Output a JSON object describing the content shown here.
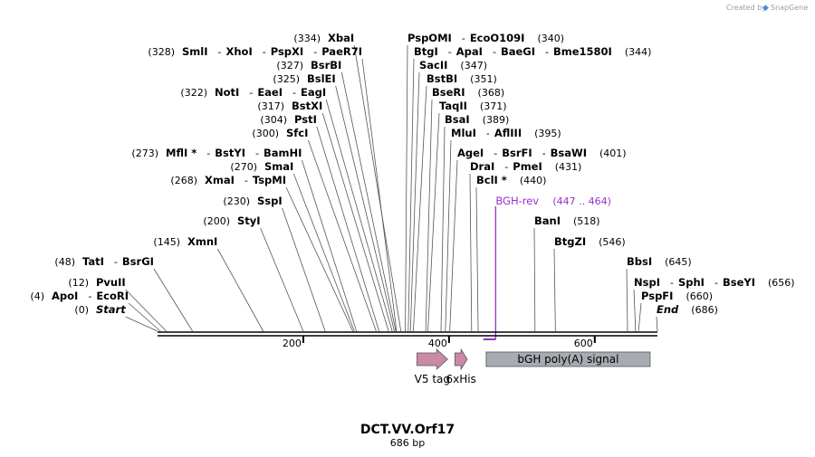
{
  "credit": {
    "created_by": "Created by",
    "brand": "SnapGene"
  },
  "map": {
    "title": "DCT.VV.Orf17",
    "length_label": "686 bp",
    "length": 686,
    "ticks": [
      {
        "pos": 200,
        "label": "200"
      },
      {
        "pos": 400,
        "label": "400"
      },
      {
        "pos": 600,
        "label": "600"
      }
    ]
  },
  "sites": [
    {
      "names": [
        "XbaI",
        "PspOMI",
        "EcoO109I"
      ],
      "pos": [
        334,
        null,
        340
      ],
      "cuts": [
        334,
        340,
        340
      ]
    },
    {
      "names": [
        "SmlI",
        "XhoI",
        "PspXI",
        "PaeR7I",
        "BtgI",
        "ApaI",
        "BaeGI",
        "Bme1580I"
      ],
      "pos": [
        328,
        null,
        null,
        null,
        null,
        null,
        null,
        344
      ],
      "cuts": [
        328,
        328,
        328,
        328,
        344,
        344,
        344,
        344
      ]
    },
    {
      "names": [
        "BsrBI",
        "SacII"
      ],
      "pos": [
        327,
        347
      ],
      "cuts": [
        327,
        347
      ]
    },
    {
      "names": [
        "BslEI",
        "BstBI"
      ],
      "pos": [
        325,
        351
      ],
      "cuts": [
        325,
        351
      ]
    },
    {
      "names": [
        "NotI",
        "EaeI",
        "EagI",
        "BseRI"
      ],
      "pos": [
        322,
        null,
        null,
        368
      ],
      "cuts": [
        322,
        322,
        322,
        368
      ]
    },
    {
      "names": [
        "BstXI",
        "TaqII"
      ],
      "pos": [
        317,
        371
      ],
      "cuts": [
        317,
        371
      ]
    },
    {
      "names": [
        "PstI",
        "BsaI"
      ],
      "pos": [
        304,
        389
      ],
      "cuts": [
        304,
        389
      ]
    },
    {
      "names": [
        "SfcI",
        "MluI",
        "AflIII"
      ],
      "pos": [
        300,
        null,
        395
      ],
      "cuts": [
        300,
        395,
        395
      ]
    },
    {
      "names": [
        "MflI *",
        "BstYI",
        "BamHI",
        "AgeI",
        "BsrFI",
        "BsaWI"
      ],
      "pos": [
        273,
        null,
        null,
        null,
        null,
        401
      ],
      "cuts": [
        273,
        273,
        273,
        401,
        401,
        401
      ]
    },
    {
      "names": [
        "SmaI",
        "DraI",
        "PmeI"
      ],
      "pos": [
        270,
        null,
        431
      ],
      "cuts": [
        270,
        431,
        431
      ]
    },
    {
      "names": [
        "XmaI",
        "TspMI",
        "BclI *"
      ],
      "pos": [
        268,
        null,
        440
      ],
      "cuts": [
        268,
        268,
        440
      ]
    },
    {
      "names": [
        "SspI"
      ],
      "pos": [
        230
      ],
      "cuts": [
        230
      ]
    },
    {
      "names": [
        "StyI",
        "BanI"
      ],
      "pos": [
        200,
        518
      ],
      "cuts": [
        200,
        518
      ]
    },
    {
      "names": [
        "XmnI",
        "BtgZI"
      ],
      "pos": [
        145,
        546
      ],
      "cuts": [
        145,
        546
      ]
    },
    {
      "names": [
        "TatI",
        "BsrGI",
        "BbsI"
      ],
      "pos": [
        48,
        null,
        645
      ],
      "cuts": [
        48,
        48,
        645
      ]
    },
    {
      "names": [
        "PvuII",
        "NspI",
        "SphI",
        "BseYI"
      ],
      "pos": [
        12,
        null,
        null,
        656
      ],
      "cuts": [
        12,
        656,
        656,
        656
      ]
    },
    {
      "names": [
        "ApoI",
        "EcoRI",
        "PspFI"
      ],
      "pos": [
        4,
        null,
        660
      ],
      "cuts": [
        4,
        4,
        660
      ]
    },
    {
      "names": [
        "Start",
        "End"
      ],
      "pos": [
        0,
        686
      ],
      "cuts": [
        0,
        686
      ]
    }
  ],
  "primer": {
    "name": "BGH-rev",
    "range": "(447 .. 464)",
    "start": 447,
    "end": 464,
    "color": "#9b30c8"
  },
  "features": [
    {
      "name": "V5 tag",
      "start": 356,
      "end": 398,
      "type": "arrow",
      "color": "#c98aa6"
    },
    {
      "name": "6xHis",
      "start": 408,
      "end": 425,
      "type": "arrow",
      "color": "#c98aa6"
    },
    {
      "name": "bGH poly(A) signal",
      "start": 451,
      "end": 676,
      "type": "box",
      "color": "#a8acb2"
    }
  ]
}
